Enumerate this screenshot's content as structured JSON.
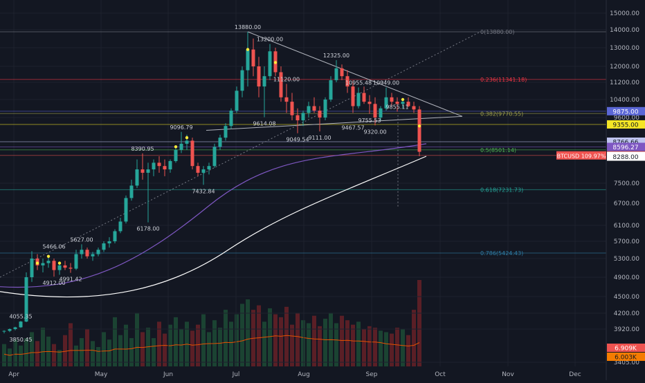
{
  "chart_data": {
    "type": "candlestick",
    "symbol": "BTCUSD",
    "change_badge": "BTCUSD 109.97%",
    "x_ticks": [
      "Apr",
      "May",
      "Jun",
      "Jul",
      "Aug",
      "Sep",
      "Oct",
      "Nov",
      "Dec"
    ],
    "y_ticks": [
      "15000.00",
      "14000.00",
      "13000.00",
      "12000.00",
      "11200.00",
      "10400.00",
      "9600.00",
      "7500.00",
      "6700.00",
      "6100.00",
      "5700.00",
      "5300.00",
      "4900.00",
      "4500.00",
      "4200.00",
      "3920.00",
      "3405.00"
    ],
    "price_labels": [
      {
        "text": "9875.00",
        "price": 9875,
        "color": "#5b67d6"
      },
      {
        "text": "9355.00",
        "price": 9355,
        "color": "#f5e625"
      },
      {
        "text": "8766.66",
        "price": 8766.66,
        "color": "#bfc4f0"
      },
      {
        "text": "8596.27",
        "price": 8596.27,
        "color": "#7e57c2"
      },
      {
        "text": "8326.25",
        "price": 8326.25,
        "color": "#ef5350"
      },
      {
        "text": "8309.79",
        "price": 8309.79,
        "color": "#ffffff"
      },
      {
        "text": "8288.00",
        "price": 8288,
        "color": "#ffffff"
      }
    ],
    "fib_levels": [
      {
        "label": "0(13880.00)",
        "price": 13880,
        "color": "#787b86"
      },
      {
        "label": "0.236(11341.18)",
        "price": 11341.18,
        "color": "#f23645"
      },
      {
        "label": "0.382(9770.55)",
        "price": 9770.55,
        "color": "#9ea04a"
      },
      {
        "label": "0.5(8501.14)",
        "price": 8501.14,
        "color": "#4caf50"
      },
      {
        "label": "0.618(7231.73)",
        "price": 7231.73,
        "color": "#26a69a"
      },
      {
        "label": "0.786(5424.43)",
        "price": 5424.43,
        "color": "#2e7fa8"
      }
    ],
    "annotations": [
      "13880.00",
      "13200.00",
      "12325.00",
      "11120.00",
      "10955.48",
      "10949.00",
      "9614.08",
      "9049.54",
      "9111.00",
      "9467.57",
      "9755.53",
      "9320.00",
      "9855.11",
      "9096.79",
      "8390.95",
      "7432.84",
      "6178.00",
      "5627.00",
      "5466.06",
      "4912.00",
      "4991.42",
      "4055.35",
      "3850.45"
    ],
    "volume_labels": [
      {
        "text": "6.909K",
        "color": "#ef5350"
      },
      {
        "text": "6.003K",
        "color": "#f57c00"
      }
    ],
    "candles": [
      [
        3880,
        3900,
        3850,
        3890
      ],
      [
        3890,
        3930,
        3870,
        3920
      ],
      [
        3920,
        3960,
        3900,
        3950
      ],
      [
        3950,
        4060,
        3940,
        4050
      ],
      [
        4050,
        5000,
        4040,
        4900
      ],
      [
        4900,
        5466,
        4800,
        5300
      ],
      [
        5300,
        5400,
        5050,
        5150
      ],
      [
        5150,
        5300,
        5000,
        5200
      ],
      [
        5200,
        5350,
        5100,
        5250
      ],
      [
        5250,
        5300,
        4912,
        5050
      ],
      [
        5050,
        5200,
        4950,
        5150
      ],
      [
        5150,
        5250,
        5050,
        5100
      ],
      [
        5100,
        5200,
        4991,
        5080
      ],
      [
        5080,
        5500,
        5050,
        5400
      ],
      [
        5400,
        5627,
        5300,
        5500
      ],
      [
        5500,
        5550,
        5300,
        5350
      ],
      [
        5350,
        5450,
        5250,
        5400
      ],
      [
        5400,
        5550,
        5350,
        5500
      ],
      [
        5500,
        5700,
        5450,
        5650
      ],
      [
        5650,
        5800,
        5550,
        5700
      ],
      [
        5700,
        6000,
        5650,
        5950
      ],
      [
        5950,
        6300,
        5900,
        6200
      ],
      [
        6200,
        7000,
        6150,
        6900
      ],
      [
        6900,
        7600,
        6800,
        7400
      ],
      [
        7400,
        8200,
        7300,
        7900
      ],
      [
        7900,
        8390,
        7600,
        7800
      ],
      [
        7800,
        8100,
        6178,
        7900
      ],
      [
        7900,
        8200,
        7700,
        8100
      ],
      [
        8100,
        8300,
        7800,
        8000
      ],
      [
        8000,
        8200,
        7700,
        7900
      ],
      [
        7900,
        8200,
        7800,
        8150
      ],
      [
        8150,
        8600,
        8100,
        8500
      ],
      [
        8500,
        9096,
        8400,
        8700
      ],
      [
        8700,
        9000,
        8500,
        8800
      ],
      [
        8800,
        8900,
        7900,
        8000
      ],
      [
        8000,
        8100,
        7700,
        7800
      ],
      [
        7800,
        8000,
        7432,
        7900
      ],
      [
        7900,
        8100,
        7750,
        8000
      ],
      [
        8000,
        8700,
        7950,
        8600
      ],
      [
        8600,
        9000,
        8500,
        8900
      ],
      [
        8900,
        9400,
        8800,
        9300
      ],
      [
        9300,
        10000,
        9200,
        9900
      ],
      [
        9900,
        11000,
        9800,
        10800
      ],
      [
        10800,
        12000,
        10500,
        11800
      ],
      [
        11800,
        13880,
        11000,
        12900
      ],
      [
        12900,
        13500,
        11500,
        12000
      ],
      [
        12000,
        12500,
        10500,
        11000
      ],
      [
        11000,
        12000,
        9614,
        11500
      ],
      [
        11500,
        13200,
        11300,
        12800
      ],
      [
        12800,
        13000,
        11500,
        11700
      ],
      [
        11700,
        12000,
        10300,
        10500
      ],
      [
        10500,
        11120,
        9800,
        10300
      ],
      [
        10300,
        10700,
        9500,
        9700
      ],
      [
        9700,
        10000,
        9049,
        9500
      ],
      [
        9500,
        9900,
        9300,
        9800
      ],
      [
        9800,
        10300,
        9600,
        10100
      ],
      [
        10100,
        10500,
        9800,
        9900
      ],
      [
        9900,
        10100,
        9111,
        9600
      ],
      [
        9600,
        10500,
        9500,
        10400
      ],
      [
        10400,
        11500,
        10300,
        11300
      ],
      [
        11300,
        12325,
        11200,
        11900
      ],
      [
        11900,
        12100,
        11300,
        11500
      ],
      [
        11500,
        11800,
        10700,
        11000
      ],
      [
        11000,
        11300,
        9800,
        10100
      ],
      [
        10100,
        10955,
        10000,
        10700
      ],
      [
        10700,
        11000,
        10200,
        10300
      ],
      [
        10300,
        10600,
        9755,
        10200
      ],
      [
        10200,
        10500,
        9320,
        9600
      ],
      [
        9600,
        10100,
        9500,
        10000
      ],
      [
        10000,
        10949,
        9900,
        10500
      ],
      [
        10500,
        10700,
        10100,
        10300
      ],
      [
        10300,
        10500,
        9855,
        10200
      ],
      [
        10200,
        10400,
        10000,
        10300
      ],
      [
        10300,
        10500,
        10050,
        10100
      ],
      [
        10100,
        10300,
        9800,
        9950
      ],
      [
        9950,
        10100,
        8300,
        8440
      ]
    ],
    "volumes": [
      150,
      120,
      180,
      140,
      190,
      230,
      170,
      260,
      200,
      150,
      110,
      210,
      290,
      140,
      190,
      250,
      170,
      130,
      230,
      180,
      330,
      210,
      280,
      190,
      360,
      230,
      260,
      190,
      300,
      220,
      280,
      330,
      250,
      300,
      240,
      280,
      350,
      230,
      310,
      260,
      380,
      300,
      350,
      420,
      450,
      380,
      410,
      300,
      390,
      350,
      330,
      400,
      280,
      360,
      310,
      290,
      340,
      270,
      320,
      360,
      290,
      340,
      310,
      280,
      300,
      250,
      270,
      260,
      240,
      230,
      220,
      260,
      250,
      210,
      380,
      580
    ]
  }
}
